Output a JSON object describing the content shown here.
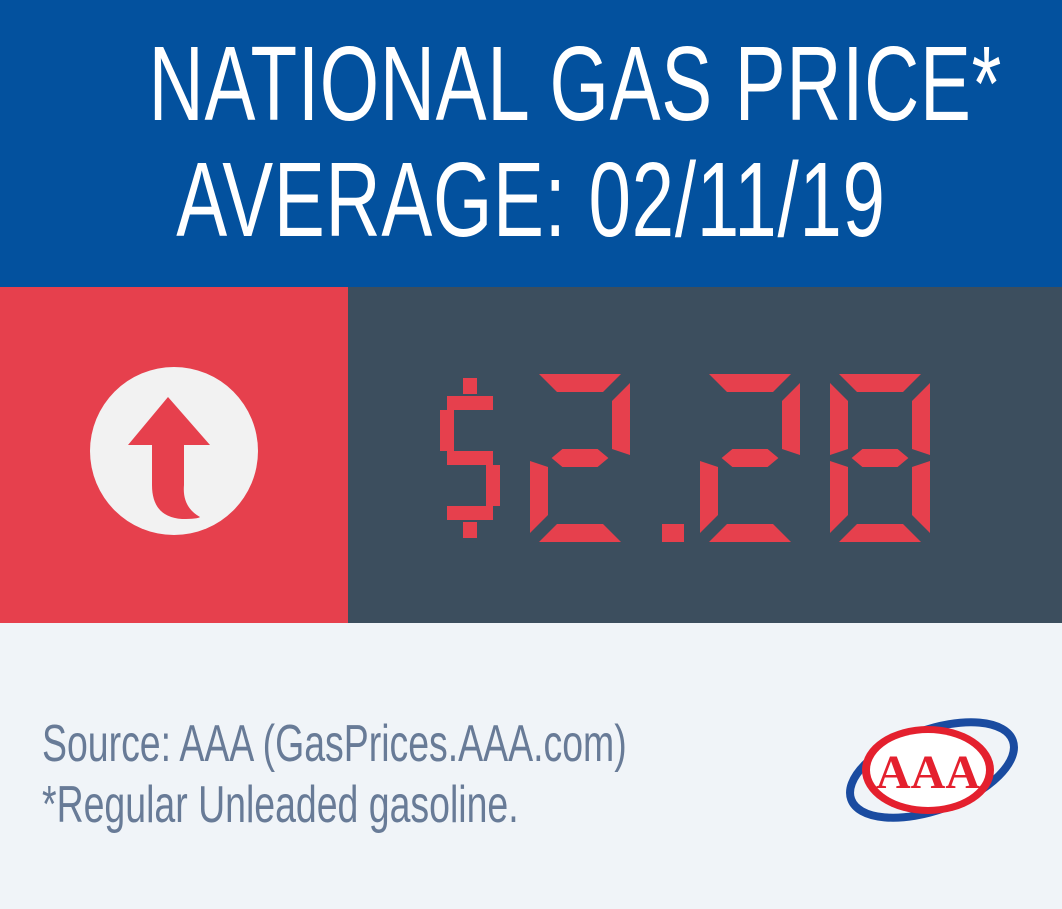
{
  "header": {
    "title_line1": "NATIONAL GAS PRICE*",
    "title_line2": "AVERAGE: 02/11/19",
    "background": "#03519e"
  },
  "trend": {
    "direction": "up",
    "icon": "arrow-up-icon",
    "panel_color": "#e6404d"
  },
  "price": {
    "value": "$2.28",
    "panel_color": "#3c4e5e",
    "digit_color": "#e6404d"
  },
  "footer": {
    "source": "Source: AAA (GasPrices.AAA.com)",
    "note": "*Regular Unleaded gasoline.",
    "logo": {
      "text": "AAA",
      "icon": "aaa-logo"
    }
  }
}
